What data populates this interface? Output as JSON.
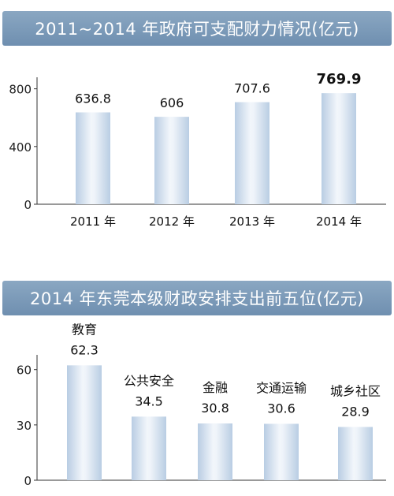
{
  "chart_data": [
    {
      "type": "bar",
      "title": "2011~2014 年政府可支配财力情况(亿元)",
      "categories": [
        "2011 年",
        "2012 年",
        "2013 年",
        "2014 年"
      ],
      "values": [
        636.8,
        606,
        707.6,
        769.9
      ],
      "value_labels": [
        "636.8",
        "606",
        "707.6",
        "769.9"
      ],
      "highlight_index": 3,
      "yticks": [
        "0",
        "400",
        "800"
      ],
      "ylim": [
        0,
        880
      ],
      "grid": false,
      "bar_color": "#b9cde3"
    },
    {
      "type": "bar",
      "title": "2014 年东莞本级财政安排支出前五位(亿元)",
      "categories": [
        "教育",
        "公共安全",
        "金融",
        "交通运输",
        "城乡社区"
      ],
      "values": [
        62.3,
        34.5,
        30.8,
        30.6,
        28.9
      ],
      "value_labels": [
        "62.3",
        "34.5",
        "30.8",
        "30.6",
        "28.9"
      ],
      "yticks": [
        "0",
        "30",
        "60"
      ],
      "ylim": [
        0,
        68
      ],
      "grid": false,
      "bar_color": "#b9cde3"
    }
  ]
}
